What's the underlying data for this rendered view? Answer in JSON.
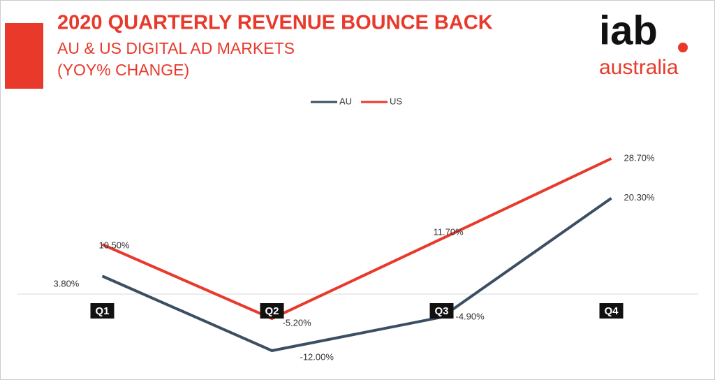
{
  "chart_data": {
    "type": "line",
    "title": "2020 QUARTERLY REVENUE BOUNCE BACK",
    "subtitle": [
      "AU & US DIGITAL AD MARKETS",
      "(YOY% CHANGE)"
    ],
    "categories": [
      "Q1",
      "Q2",
      "Q3",
      "Q4"
    ],
    "series": [
      {
        "name": "AU",
        "color": "#3b4e62",
        "values": [
          3.8,
          -12.0,
          -4.9,
          20.3
        ],
        "value_labels": [
          "3.80%",
          "-12.00%",
          "-4.90%",
          "20.30%"
        ]
      },
      {
        "name": "US",
        "color": "#e8392b",
        "values": [
          10.5,
          -5.2,
          11.7,
          28.7
        ],
        "value_labels": [
          "10.50%",
          "-5.20%",
          "11.70%",
          "28.70%"
        ]
      }
    ],
    "legend": "top"
  },
  "logo": {
    "mark": "iab",
    "name": "australia"
  }
}
